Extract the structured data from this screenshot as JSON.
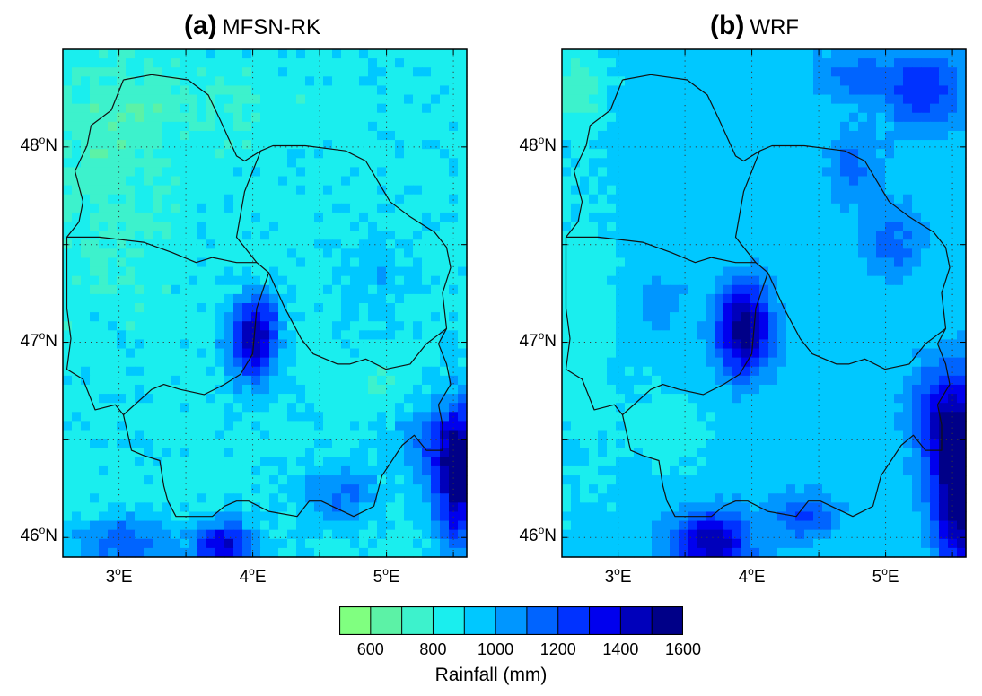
{
  "panels": [
    {
      "label": "(a)",
      "name": "MFSN-RK",
      "field": "a"
    },
    {
      "label": "(b)",
      "name": "WRF",
      "field": "b"
    }
  ],
  "axes": {
    "lon_range": [
      2.58,
      5.6
    ],
    "lat_range": [
      45.9,
      48.5
    ],
    "lat_ticks": [
      {
        "deg": "46",
        "dir": "N",
        "value": 46
      },
      {
        "deg": "47",
        "dir": "N",
        "value": 47
      },
      {
        "deg": "48",
        "dir": "N",
        "value": 48
      }
    ],
    "lon_ticks": [
      {
        "deg": "3",
        "dir": "E",
        "value": 3
      },
      {
        "deg": "4",
        "dir": "E",
        "value": 4
      },
      {
        "deg": "5",
        "dir": "E",
        "value": 5
      }
    ],
    "grid": "dotted"
  },
  "colorbar": {
    "label": "Rainfall (mm)",
    "ticks": [
      "600",
      "800",
      "1000",
      "1200",
      "1400",
      "1600"
    ],
    "colors": [
      "#80ff80",
      "#5cf2a6",
      "#3df2cc",
      "#1aeeee",
      "#00c8ff",
      "#0096ff",
      "#0064ff",
      "#0032ff",
      "#0000ee",
      "#0000bb",
      "#000088"
    ]
  }
}
